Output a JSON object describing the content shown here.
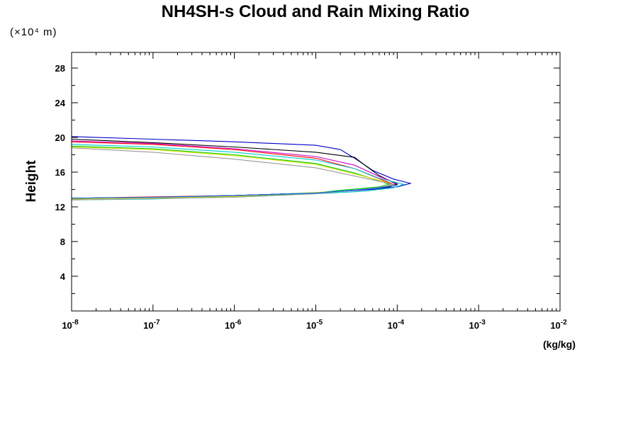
{
  "chart_data": {
    "type": "line",
    "title": "NH4SH-s Cloud and Rain Mixing Ratio",
    "ylabel": "Height",
    "y_unit": "(×10⁴ m)",
    "xlabel": "(kg/kg)",
    "x_scale": "log",
    "xlim": [
      1e-08,
      0.01
    ],
    "ylim": [
      0,
      29.8
    ],
    "x_ticks": [
      "-8",
      "-7",
      "-6",
      "-5",
      "-4",
      "-3",
      "-2"
    ],
    "x_tick_base": "10",
    "y_ticks": [
      "4",
      "8",
      "12",
      "16",
      "20",
      "24",
      "28"
    ],
    "grid": false,
    "series": [
      {
        "color": "#0000cc",
        "points": [
          [
            1e-08,
            20.1
          ],
          [
            1e-07,
            19.8
          ],
          [
            1e-06,
            19.5
          ],
          [
            1e-05,
            19.1
          ],
          [
            2e-05,
            18.6
          ],
          [
            3e-05,
            17.6
          ],
          [
            5e-05,
            16.2
          ],
          [
            9e-05,
            15.2
          ],
          [
            0.000145,
            14.7
          ],
          [
            0.0001,
            14.3
          ],
          [
            5e-05,
            14.0
          ],
          [
            1e-05,
            13.6
          ],
          [
            1e-06,
            13.3
          ],
          [
            1e-07,
            13.1
          ],
          [
            1e-08,
            13.0
          ]
        ]
      },
      {
        "color": "#000000",
        "points": [
          [
            1e-08,
            19.8
          ],
          [
            1e-07,
            19.4
          ],
          [
            1e-06,
            18.9
          ],
          [
            1e-05,
            18.3
          ],
          [
            3e-05,
            17.7
          ],
          [
            4e-05,
            16.8
          ],
          [
            6e-05,
            15.6
          ],
          [
            9e-05,
            14.8
          ],
          [
            0.0001,
            14.6
          ],
          [
            8e-05,
            14.3
          ],
          [
            3e-05,
            13.9
          ],
          [
            1e-05,
            13.6
          ],
          [
            1e-06,
            13.3
          ],
          [
            1e-07,
            13.1
          ],
          [
            1e-08,
            12.9
          ]
        ]
      },
      {
        "color": "#cc00cc",
        "points": [
          [
            1e-08,
            19.6
          ],
          [
            1e-07,
            19.3
          ],
          [
            1e-06,
            18.7
          ],
          [
            1e-05,
            17.8
          ],
          [
            3e-05,
            16.8
          ],
          [
            6e-05,
            15.5
          ],
          [
            0.0001,
            14.7
          ],
          [
            8e-05,
            14.4
          ],
          [
            4e-05,
            14.0
          ],
          [
            1e-05,
            13.6
          ],
          [
            1e-06,
            13.3
          ],
          [
            1e-07,
            13.1
          ],
          [
            1e-08,
            13.0
          ]
        ]
      },
      {
        "color": "#ff0000",
        "points": [
          [
            1e-08,
            19.5
          ],
          [
            1e-07,
            19.2
          ],
          [
            1e-06,
            18.6
          ],
          [
            1e-05,
            17.6
          ],
          [
            3e-05,
            16.4
          ],
          [
            7e-05,
            15.0
          ],
          [
            9e-05,
            14.6
          ],
          [
            7e-05,
            14.3
          ],
          [
            3e-05,
            13.9
          ],
          [
            1e-05,
            13.6
          ],
          [
            1e-06,
            13.3
          ],
          [
            1e-08,
            13.0
          ]
        ]
      },
      {
        "color": "#00cccc",
        "points": [
          [
            1e-08,
            19.2
          ],
          [
            1e-07,
            18.9
          ],
          [
            1e-06,
            18.3
          ],
          [
            1e-05,
            17.4
          ],
          [
            3e-05,
            16.4
          ],
          [
            6e-05,
            15.3
          ],
          [
            0.00012,
            14.6
          ],
          [
            9e-05,
            14.2
          ],
          [
            4e-05,
            13.8
          ],
          [
            1e-05,
            13.5
          ],
          [
            1e-06,
            13.2
          ],
          [
            1e-07,
            12.9
          ],
          [
            1e-08,
            12.8
          ]
        ]
      },
      {
        "color": "#00cc00",
        "points": [
          [
            1e-08,
            19.0
          ],
          [
            1e-07,
            18.7
          ],
          [
            1e-06,
            18.0
          ],
          [
            1e-05,
            17.0
          ],
          [
            3e-05,
            15.9
          ],
          [
            6e-05,
            15.0
          ],
          [
            8e-05,
            14.6
          ],
          [
            6e-05,
            14.3
          ],
          [
            2e-05,
            13.9
          ],
          [
            1e-05,
            13.6
          ],
          [
            1e-06,
            13.2
          ],
          [
            1e-08,
            13.0
          ]
        ]
      },
      {
        "color": "#dddd00",
        "points": [
          [
            1e-08,
            18.9
          ],
          [
            1e-07,
            18.6
          ],
          [
            1e-06,
            17.9
          ],
          [
            1e-05,
            16.9
          ],
          [
            3e-05,
            15.8
          ],
          [
            7e-05,
            14.9
          ],
          [
            9e-05,
            14.5
          ],
          [
            6e-05,
            14.2
          ],
          [
            2e-05,
            13.8
          ],
          [
            1e-06,
            13.2
          ],
          [
            1e-08,
            12.9
          ]
        ]
      },
      {
        "color": "#999999",
        "points": [
          [
            1e-08,
            18.8
          ],
          [
            1e-07,
            18.3
          ],
          [
            1e-06,
            17.5
          ],
          [
            1e-05,
            16.5
          ],
          [
            4e-05,
            15.3
          ],
          [
            9e-05,
            14.6
          ],
          [
            7e-05,
            14.3
          ],
          [
            3e-05,
            13.9
          ],
          [
            1e-05,
            13.5
          ],
          [
            1e-06,
            13.1
          ],
          [
            1e-08,
            12.8
          ]
        ]
      },
      {
        "color": "#0066ff",
        "points": [
          [
            1e-08,
            13.0
          ],
          [
            1e-07,
            13.1
          ],
          [
            1e-06,
            13.3
          ],
          [
            1e-05,
            13.6
          ],
          [
            5e-05,
            14.1
          ],
          [
            0.0001,
            14.5
          ]
        ]
      }
    ]
  }
}
